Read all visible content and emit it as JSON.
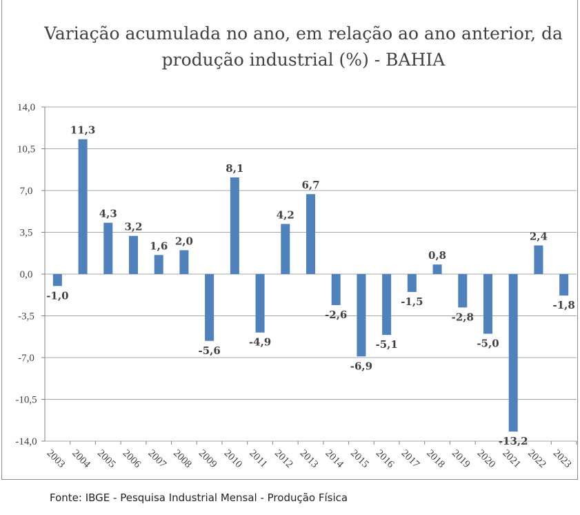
{
  "chart_data": {
    "type": "bar",
    "title": "Variação acumulada no ano, em relação ao ano anterior, da produção industrial (%) - BAHIA",
    "title_lines": [
      "Variação acumulada no ano, em relação ao ano anterior, da",
      "produção industrial (%) - BAHIA"
    ],
    "categories": [
      "2003",
      "2004",
      "2005",
      "2006",
      "2007",
      "2008",
      "2009",
      "2010",
      "2011",
      "2012",
      "2013",
      "2014",
      "2015",
      "2016",
      "2017",
      "2018",
      "2019",
      "2020",
      "2021",
      "2022",
      "2023"
    ],
    "values": [
      -1.0,
      11.3,
      4.3,
      3.2,
      1.6,
      2.0,
      -5.6,
      8.1,
      -4.9,
      4.2,
      6.7,
      -2.6,
      -6.9,
      -5.1,
      -1.5,
      0.8,
      -2.8,
      -5.0,
      -13.2,
      2.4,
      -1.8
    ],
    "data_labels": [
      "-1,0",
      "11,3",
      "4,3",
      "3,2",
      "1,6",
      "2,0",
      "-5,6",
      "8,1",
      "-4,9",
      "4,2",
      "6,7",
      "-2,6",
      "-6,9",
      "-5,1",
      "-1,5",
      "0,8",
      "-2,8",
      "-5,0",
      "-13,2",
      "2,4",
      "-1,8"
    ],
    "ylim": [
      -14.0,
      14.0
    ],
    "yticks": [
      "14,0",
      "10,5",
      "7,0",
      "3,5",
      "0,0",
      "-3,5",
      "-7,0",
      "-10,5",
      "-14,0"
    ],
    "ytick_values": [
      14,
      10.5,
      7,
      3.5,
      0,
      -3.5,
      -7,
      -10.5,
      -14
    ],
    "xlabel": "",
    "ylabel": "",
    "grid": true,
    "bar_color": "#4f81bd",
    "source": "Fonte: IBGE - Pesquisa Industrial Mensal - Produção Física"
  }
}
